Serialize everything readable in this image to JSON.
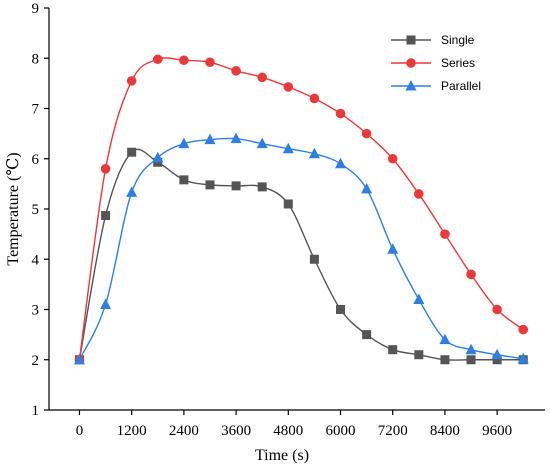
{
  "chart_data": {
    "type": "line",
    "title": "",
    "xlabel": "Time (s)",
    "ylabel": "Temperature (℃)",
    "xlim": [
      -700,
      10700
    ],
    "ylim": [
      1,
      9
    ],
    "xticks": [
      0,
      1200,
      2400,
      3600,
      4800,
      6000,
      7200,
      8400,
      9600
    ],
    "yticks": [
      1,
      2,
      3,
      4,
      5,
      6,
      7,
      8,
      9
    ],
    "grid": false,
    "legend_position": "top-right",
    "series": [
      {
        "name": "Single",
        "color": "#555555",
        "marker": "square",
        "x": [
          0,
          600,
          1200,
          1800,
          2400,
          3000,
          3600,
          4200,
          4800,
          5400,
          6000,
          6600,
          7200,
          7800,
          8400,
          9000,
          9600,
          10200
        ],
        "y": [
          2.0,
          4.87,
          6.13,
          5.93,
          5.58,
          5.48,
          5.46,
          5.44,
          5.1,
          4.0,
          3.0,
          2.5,
          2.2,
          2.1,
          2.0,
          2.0,
          2.0,
          2.0
        ]
      },
      {
        "name": "Series",
        "color": "#e83a3a",
        "marker": "circle",
        "x": [
          0,
          600,
          1200,
          1800,
          2400,
          3000,
          3600,
          4200,
          4800,
          5400,
          6000,
          6600,
          7200,
          7800,
          8400,
          9000,
          9600,
          10200
        ],
        "y": [
          2.0,
          5.8,
          7.55,
          7.98,
          7.96,
          7.92,
          7.75,
          7.62,
          7.43,
          7.2,
          6.9,
          6.5,
          6.0,
          5.3,
          4.5,
          3.7,
          3.0,
          2.6
        ]
      },
      {
        "name": "Parallel",
        "color": "#2f7fe0",
        "marker": "triangle",
        "x": [
          0,
          600,
          1200,
          1800,
          2400,
          3000,
          3600,
          4200,
          4800,
          5400,
          6000,
          6600,
          7200,
          7800,
          8400,
          9000,
          9600,
          10200
        ],
        "y": [
          2.0,
          3.1,
          5.33,
          6.02,
          6.3,
          6.38,
          6.4,
          6.3,
          6.2,
          6.1,
          5.9,
          5.4,
          4.2,
          3.2,
          2.4,
          2.2,
          2.1,
          2.02
        ]
      }
    ]
  }
}
